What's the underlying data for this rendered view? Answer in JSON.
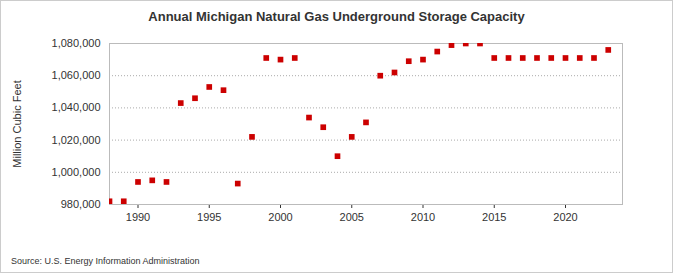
{
  "chart_data": {
    "type": "scatter",
    "title": "Annual Michigan Natural Gas Underground Storage Capacity",
    "y_label": "Million Cubic Feet",
    "source": "Source: U.S. Energy Information Administration",
    "x": [
      1988,
      1989,
      1990,
      1991,
      1992,
      1993,
      1994,
      1995,
      1996,
      1997,
      1998,
      1999,
      2000,
      2001,
      2002,
      2003,
      2004,
      2005,
      2006,
      2007,
      2008,
      2009,
      2010,
      2011,
      2012,
      2013,
      2014,
      2015,
      2016,
      2017,
      2018,
      2019,
      2020,
      2021,
      2022,
      2023
    ],
    "values": [
      982000,
      982000,
      994000,
      995000,
      994000,
      1043000,
      1046000,
      1053000,
      1051000,
      993000,
      1022000,
      1071000,
      1070000,
      1071000,
      1034000,
      1028000,
      1010000,
      1022000,
      1031000,
      1060000,
      1062000,
      1069000,
      1070000,
      1075000,
      1079000,
      1080000,
      1080000,
      1071000,
      1071000,
      1071000,
      1071000,
      1071000,
      1071000,
      1071000,
      1071000,
      1076000
    ],
    "color": "#cc0000",
    "marker": "square",
    "xlim": [
      1988,
      2024
    ],
    "xticks": [
      1990,
      1995,
      2000,
      2005,
      2010,
      2015,
      2020
    ],
    "ylim": [
      980000,
      1080000
    ],
    "yticks": [
      {
        "value": 980000,
        "label": "980,000"
      },
      {
        "value": 1000000,
        "label": "1,000,000"
      },
      {
        "value": 1020000,
        "label": "1,020,000"
      },
      {
        "value": 1040000,
        "label": "1,040,000"
      },
      {
        "value": 1060000,
        "label": "1,060,000"
      },
      {
        "value": 1080000,
        "label": "1,080,000"
      }
    ],
    "grid": true
  }
}
